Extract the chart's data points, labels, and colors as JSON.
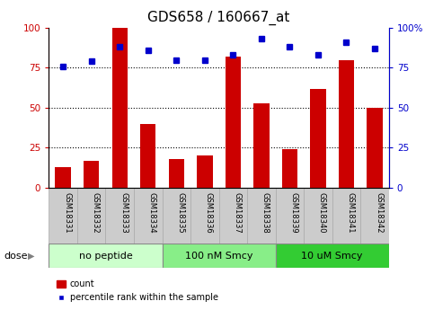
{
  "title": "GDS658 / 160667_at",
  "samples": [
    "GSM18331",
    "GSM18332",
    "GSM18333",
    "GSM18334",
    "GSM18335",
    "GSM18336",
    "GSM18337",
    "GSM18338",
    "GSM18339",
    "GSM18340",
    "GSM18341",
    "GSM18342"
  ],
  "bar_values": [
    13,
    17,
    100,
    40,
    18,
    20,
    82,
    53,
    24,
    62,
    80,
    50
  ],
  "dot_values": [
    76,
    79,
    88,
    86,
    80,
    80,
    83,
    93,
    88,
    83,
    91,
    87
  ],
  "bar_color": "#cc0000",
  "dot_color": "#0000cc",
  "ylim": [
    0,
    100
  ],
  "y_ticks": [
    0,
    25,
    50,
    75,
    100
  ],
  "groups": [
    {
      "label": "no peptide",
      "start": 0,
      "end": 4,
      "color": "#ccffcc"
    },
    {
      "label": "100 nM Smcy",
      "start": 4,
      "end": 8,
      "color": "#88ee88"
    },
    {
      "label": "10 uM Smcy",
      "start": 8,
      "end": 12,
      "color": "#33cc33"
    }
  ],
  "dose_label": "dose",
  "legend_bar_label": "count",
  "legend_dot_label": "percentile rank within the sample",
  "title_fontsize": 11,
  "tick_fontsize": 7.5,
  "sample_fontsize": 6,
  "group_fontsize": 8,
  "legend_fontsize": 7,
  "left_axis_color": "#cc0000",
  "right_axis_color": "#0000cc",
  "sample_bg_color": "#cccccc",
  "sample_border_color": "#aaaaaa",
  "plot_bg_color": "#ffffff"
}
